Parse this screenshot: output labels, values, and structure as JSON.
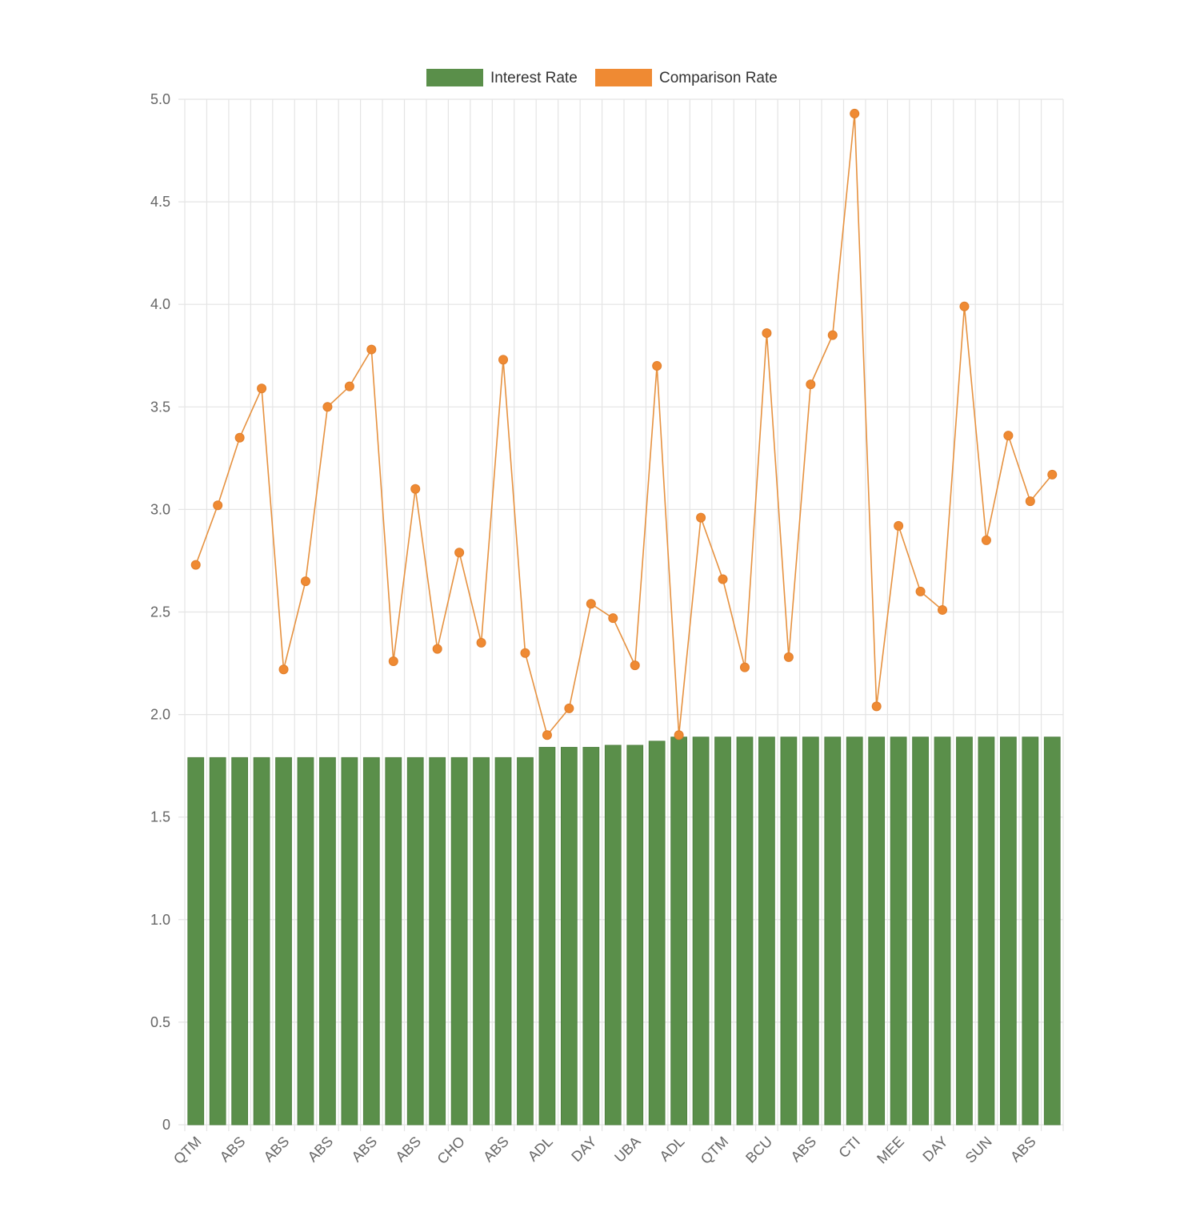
{
  "chart_data": {
    "type": "bar",
    "title": "",
    "xlabel": "",
    "ylabel": "",
    "ylim": [
      0,
      5
    ],
    "yticks": [
      "0",
      "0.5",
      "1.0",
      "1.5",
      "2.0",
      "2.5",
      "3.0",
      "3.5",
      "4.0",
      "4.5",
      "5.0"
    ],
    "grid": true,
    "legend_position": "top-center",
    "categories": [
      "QTM",
      "",
      "ABS",
      "",
      "ABS",
      "",
      "ABS",
      "",
      "ABS",
      "",
      "ABS",
      "",
      "CHO",
      "",
      "ABS",
      "",
      "ADL",
      "",
      "DAY",
      "",
      "UBA",
      "",
      "ADL",
      "",
      "QTM",
      "",
      "BCU",
      "",
      "ABS",
      "",
      "CTI",
      "",
      "MEE",
      "",
      "DAY",
      "",
      "SUN",
      "",
      "ABS",
      ""
    ],
    "series": [
      {
        "name": "Interest Rate",
        "type": "bar",
        "color": "#5a8f4a",
        "values": [
          1.79,
          1.79,
          1.79,
          1.79,
          1.79,
          1.79,
          1.79,
          1.79,
          1.79,
          1.79,
          1.79,
          1.79,
          1.79,
          1.79,
          1.79,
          1.79,
          1.84,
          1.84,
          1.84,
          1.85,
          1.85,
          1.87,
          1.89,
          1.89,
          1.89,
          1.89,
          1.89,
          1.89,
          1.89,
          1.89,
          1.89,
          1.89,
          1.89,
          1.89,
          1.89,
          1.89,
          1.89,
          1.89,
          1.89,
          1.89
        ]
      },
      {
        "name": "Comparison Rate",
        "type": "line",
        "color": "#ef8a33",
        "values": [
          2.73,
          3.02,
          3.35,
          3.59,
          2.22,
          2.65,
          3.5,
          3.6,
          3.78,
          2.26,
          3.1,
          2.32,
          2.79,
          2.35,
          3.73,
          2.3,
          1.9,
          2.03,
          2.54,
          2.47,
          2.24,
          3.7,
          1.9,
          2.96,
          2.66,
          2.23,
          3.86,
          2.28,
          3.61,
          3.85,
          4.93,
          2.04,
          2.92,
          2.6,
          2.51,
          3.99,
          2.85,
          3.36,
          3.04,
          3.17
        ]
      }
    ]
  }
}
